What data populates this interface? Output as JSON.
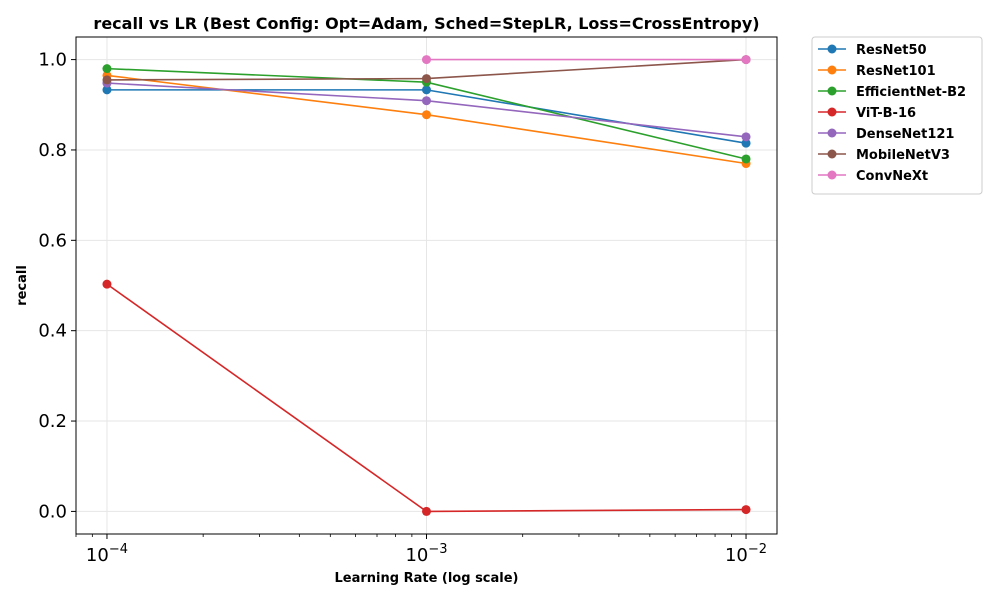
{
  "chart_data": {
    "type": "line",
    "title": "recall vs LR (Best Config: Opt=Adam, Sched=StepLR, Loss=CrossEntropy)",
    "xlabel": "Learning Rate (log scale)",
    "ylabel": "recall",
    "xscale": "log",
    "xlim": [
      8e-05,
      0.0125
    ],
    "ylim": [
      -0.05,
      1.05
    ],
    "x": [
      0.0001,
      0.001,
      0.01
    ],
    "xticks": [
      {
        "value": 0.0001,
        "base": "10",
        "exp": "−4"
      },
      {
        "value": 0.001,
        "base": "10",
        "exp": "−3"
      },
      {
        "value": 0.01,
        "base": "10",
        "exp": "−2"
      }
    ],
    "yticks": [
      {
        "value": 0.0,
        "label": "0.0"
      },
      {
        "value": 0.2,
        "label": "0.2"
      },
      {
        "value": 0.4,
        "label": "0.4"
      },
      {
        "value": 0.6,
        "label": "0.6"
      },
      {
        "value": 0.8,
        "label": "0.8"
      },
      {
        "value": 1.0,
        "label": "1.0"
      }
    ],
    "grid": true,
    "legend_position": "outside-upper-right",
    "series": [
      {
        "name": "ResNet50",
        "color": "#1f77b4",
        "values": [
          0.933,
          0.933,
          0.815
        ]
      },
      {
        "name": "ResNet101",
        "color": "#ff7f0e",
        "values": [
          0.965,
          0.878,
          0.77
        ]
      },
      {
        "name": "EfficientNet-B2",
        "color": "#2ca02c",
        "values": [
          0.98,
          0.95,
          0.78
        ]
      },
      {
        "name": "ViT-B-16",
        "color": "#d62728",
        "values": [
          0.503,
          0.0,
          0.004
        ]
      },
      {
        "name": "DenseNet121",
        "color": "#9467bd",
        "values": [
          0.948,
          0.909,
          0.829
        ]
      },
      {
        "name": "MobileNetV3",
        "color": "#8c564b",
        "values": [
          0.955,
          0.958,
          1.0
        ]
      },
      {
        "name": "ConvNeXt",
        "color": "#e377c2",
        "values": [
          null,
          1.0,
          1.0
        ]
      }
    ]
  }
}
